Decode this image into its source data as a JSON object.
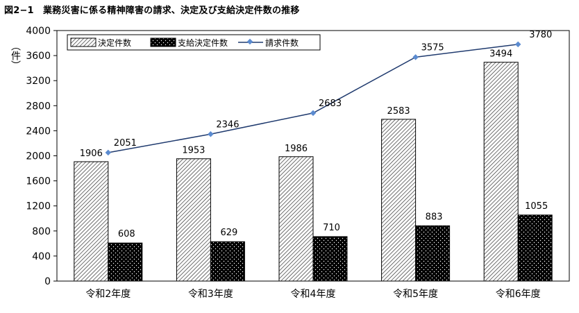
{
  "chart_data": {
    "type": "bar",
    "title": "図2−1　業務災害に係る精神障害の請求、決定及び支給決定件数の推移",
    "ylabel": "（件）",
    "categories": [
      "令和2年度",
      "令和3年度",
      "令和4年度",
      "令和5年度",
      "令和6年度"
    ],
    "ylim": [
      0,
      4000
    ],
    "yticks": [
      0,
      400,
      800,
      1200,
      1600,
      2000,
      2400,
      2800,
      3200,
      3600,
      4000
    ],
    "grid": false,
    "legend_position": "top-left",
    "series": [
      {
        "name": "決定件数",
        "kind": "bar",
        "pattern": "diagonal-hatch",
        "values": [
          1906,
          1953,
          1986,
          2583,
          3494
        ]
      },
      {
        "name": "支給決定件数",
        "kind": "bar",
        "pattern": "dotted-dark",
        "values": [
          608,
          629,
          710,
          883,
          1055
        ]
      },
      {
        "name": "請求件数",
        "kind": "line",
        "color": "#1f3a6e",
        "marker_color": "#5b8bd0",
        "values": [
          2051,
          2346,
          2683,
          3575,
          3780
        ]
      }
    ]
  }
}
